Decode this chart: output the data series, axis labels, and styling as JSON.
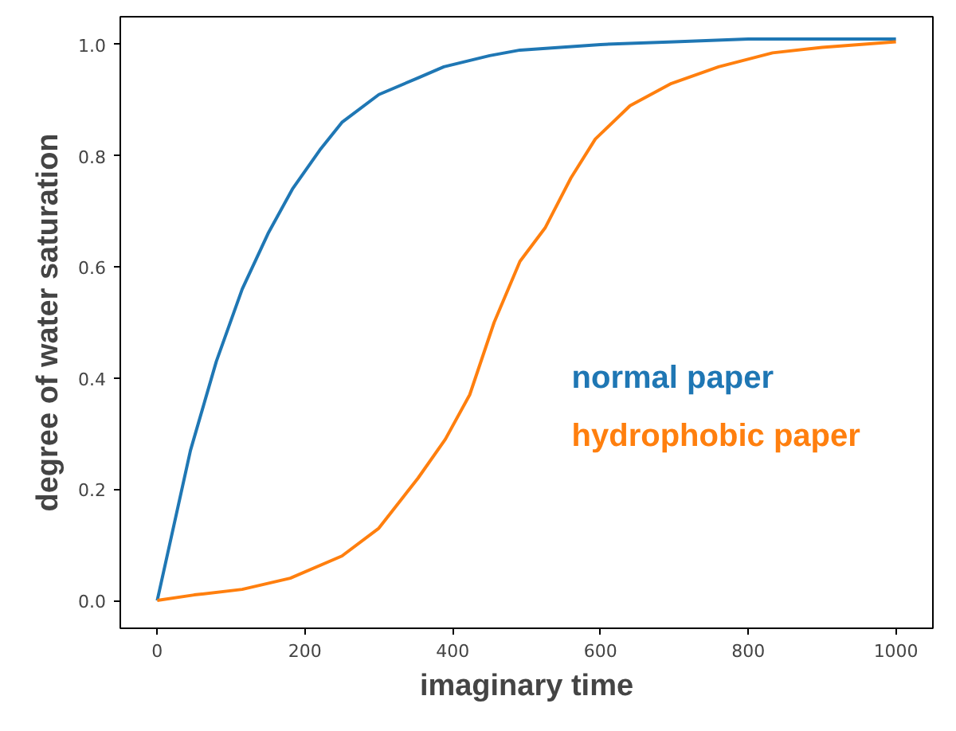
{
  "chart_data": {
    "type": "line",
    "xlabel": "imaginary time",
    "ylabel": "degree of water saturation",
    "xlim": [
      -50,
      1050
    ],
    "ylim": [
      -0.05,
      1.05
    ],
    "xticks": [
      0,
      200,
      400,
      600,
      800,
      1000
    ],
    "yticks": [
      {
        "value": 0,
        "label": "0.0"
      },
      0.2,
      0.4,
      0.6,
      0.8,
      {
        "value": 1,
        "label": "1.0"
      }
    ],
    "grid": false,
    "legend": false,
    "marker": "none",
    "line_style": "solid",
    "series": [
      {
        "name": "normal paper",
        "color": "#1f77b4",
        "x": [
          0,
          20,
          45,
          80,
          115,
          150,
          183,
          220,
          250,
          300,
          353,
          388,
          450,
          491,
          600,
          700,
          800,
          900,
          1000
        ],
        "values": [
          0,
          0.12,
          0.27,
          0.43,
          0.56,
          0.66,
          0.74,
          0.81,
          0.86,
          0.91,
          0.94,
          0.96,
          0.98,
          0.99,
          1.0,
          1.005,
          1.01,
          1.01,
          1.01
        ]
      },
      {
        "name": "hydrophobic paper",
        "color": "#ff7f0e",
        "x": [
          0,
          50,
          115,
          180,
          250,
          300,
          353,
          390,
          423,
          456,
          491,
          525,
          560,
          593,
          640,
          696,
          760,
          833,
          900,
          1000
        ],
        "values": [
          0,
          0.01,
          0.02,
          0.04,
          0.08,
          0.13,
          0.22,
          0.29,
          0.37,
          0.5,
          0.61,
          0.67,
          0.76,
          0.83,
          0.89,
          0.93,
          0.96,
          0.985,
          0.995,
          1.005
        ]
      }
    ]
  }
}
